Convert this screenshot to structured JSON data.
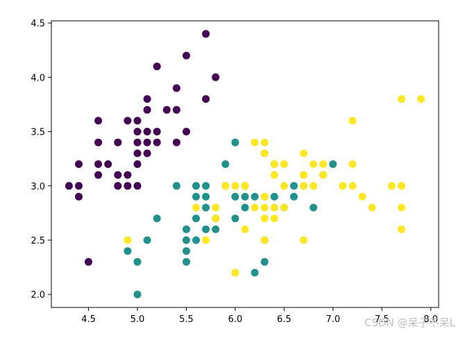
{
  "chart_data": {
    "type": "scatter",
    "title": "",
    "xlabel": "",
    "ylabel": "",
    "xlim": [
      4.12,
      8.08
    ],
    "ylim": [
      1.88,
      4.52
    ],
    "x_ticks": [
      4.5,
      5.0,
      5.5,
      6.0,
      6.5,
      7.0,
      7.5,
      8.0
    ],
    "x_tick_labels": [
      "4.5",
      "5.0",
      "5.5",
      "6.0",
      "6.5",
      "7.0",
      "7.5",
      "8.0"
    ],
    "y_ticks": [
      2.0,
      2.5,
      3.0,
      3.5,
      4.0,
      4.5
    ],
    "y_tick_labels": [
      "2.0",
      "2.5",
      "3.0",
      "3.5",
      "4.0",
      "4.5"
    ],
    "grid": false,
    "legend": "none",
    "series": [
      {
        "color": "#440154",
        "points": [
          [
            4.3,
            3.0
          ],
          [
            4.4,
            3.2
          ],
          [
            4.4,
            3.0
          ],
          [
            4.4,
            2.9
          ],
          [
            4.5,
            2.3
          ],
          [
            4.6,
            3.6
          ],
          [
            4.6,
            3.4
          ],
          [
            4.6,
            3.2
          ],
          [
            4.6,
            3.1
          ],
          [
            4.7,
            3.2
          ],
          [
            4.8,
            3.4
          ],
          [
            4.8,
            3.1
          ],
          [
            4.8,
            3.0
          ],
          [
            4.9,
            3.6
          ],
          [
            4.9,
            3.1
          ],
          [
            4.9,
            3.0
          ],
          [
            5.0,
            3.6
          ],
          [
            5.0,
            3.5
          ],
          [
            5.0,
            3.4
          ],
          [
            5.0,
            3.3
          ],
          [
            5.0,
            3.2
          ],
          [
            5.0,
            3.0
          ],
          [
            5.1,
            3.8
          ],
          [
            5.1,
            3.7
          ],
          [
            5.1,
            3.5
          ],
          [
            5.1,
            3.4
          ],
          [
            5.1,
            3.3
          ],
          [
            5.2,
            4.1
          ],
          [
            5.2,
            3.5
          ],
          [
            5.2,
            3.4
          ],
          [
            5.3,
            3.7
          ],
          [
            5.4,
            3.9
          ],
          [
            5.4,
            3.7
          ],
          [
            5.4,
            3.4
          ],
          [
            5.5,
            4.2
          ],
          [
            5.5,
            3.5
          ],
          [
            5.7,
            4.4
          ],
          [
            5.7,
            3.8
          ],
          [
            5.8,
            4.0
          ]
        ]
      },
      {
        "color": "#21918c",
        "points": [
          [
            4.9,
            2.4
          ],
          [
            5.0,
            2.3
          ],
          [
            5.0,
            2.0
          ],
          [
            5.1,
            2.5
          ],
          [
            5.2,
            2.7
          ],
          [
            5.4,
            3.0
          ],
          [
            5.5,
            2.6
          ],
          [
            5.5,
            2.5
          ],
          [
            5.5,
            2.4
          ],
          [
            5.5,
            2.3
          ],
          [
            5.6,
            3.0
          ],
          [
            5.6,
            2.9
          ],
          [
            5.6,
            2.7
          ],
          [
            5.6,
            2.5
          ],
          [
            5.7,
            3.0
          ],
          [
            5.7,
            2.9
          ],
          [
            5.7,
            2.8
          ],
          [
            5.7,
            2.6
          ],
          [
            5.8,
            2.7
          ],
          [
            5.8,
            2.6
          ],
          [
            5.9,
            3.2
          ],
          [
            5.9,
            3.0
          ],
          [
            6.0,
            3.4
          ],
          [
            6.0,
            2.9
          ],
          [
            6.0,
            2.7
          ],
          [
            6.0,
            2.2
          ],
          [
            6.1,
            3.0
          ],
          [
            6.1,
            2.9
          ],
          [
            6.1,
            2.8
          ],
          [
            6.2,
            2.9
          ],
          [
            6.2,
            2.2
          ],
          [
            6.3,
            2.5
          ],
          [
            6.3,
            2.3
          ],
          [
            6.3,
            3.3
          ],
          [
            6.4,
            3.2
          ],
          [
            6.4,
            2.9
          ],
          [
            6.5,
            2.8
          ],
          [
            6.6,
            3.0
          ],
          [
            6.6,
            2.9
          ],
          [
            6.7,
            3.1
          ],
          [
            6.7,
            3.0
          ],
          [
            6.8,
            2.8
          ],
          [
            6.9,
            3.1
          ],
          [
            7.0,
            3.2
          ]
        ]
      },
      {
        "color": "#fde725",
        "points": [
          [
            4.9,
            2.5
          ],
          [
            5.6,
            2.8
          ],
          [
            5.7,
            2.5
          ],
          [
            5.8,
            2.8
          ],
          [
            5.8,
            2.7
          ],
          [
            5.9,
            3.0
          ],
          [
            6.0,
            3.0
          ],
          [
            6.0,
            2.2
          ],
          [
            6.1,
            3.0
          ],
          [
            6.1,
            2.6
          ],
          [
            6.2,
            3.4
          ],
          [
            6.2,
            2.8
          ],
          [
            6.3,
            3.4
          ],
          [
            6.3,
            3.3
          ],
          [
            6.3,
            2.9
          ],
          [
            6.3,
            2.8
          ],
          [
            6.3,
            2.7
          ],
          [
            6.3,
            2.5
          ],
          [
            6.4,
            3.2
          ],
          [
            6.4,
            3.1
          ],
          [
            6.4,
            2.8
          ],
          [
            6.4,
            2.7
          ],
          [
            6.5,
            3.2
          ],
          [
            6.5,
            3.0
          ],
          [
            6.7,
            3.3
          ],
          [
            6.7,
            3.1
          ],
          [
            6.7,
            3.0
          ],
          [
            6.7,
            2.5
          ],
          [
            6.8,
            3.2
          ],
          [
            6.8,
            3.0
          ],
          [
            6.9,
            3.2
          ],
          [
            6.9,
            3.1
          ],
          [
            7.1,
            3.0
          ],
          [
            7.2,
            3.6
          ],
          [
            7.2,
            3.2
          ],
          [
            7.2,
            3.0
          ],
          [
            7.3,
            2.9
          ],
          [
            7.4,
            2.8
          ],
          [
            7.6,
            3.0
          ],
          [
            7.7,
            3.8
          ],
          [
            7.7,
            3.0
          ],
          [
            7.7,
            2.8
          ],
          [
            7.7,
            2.6
          ],
          [
            7.9,
            3.8
          ],
          [
            6.5,
            2.8
          ]
        ]
      }
    ]
  },
  "watermark": {
    "text": "CSDN @呆子不呆L"
  }
}
